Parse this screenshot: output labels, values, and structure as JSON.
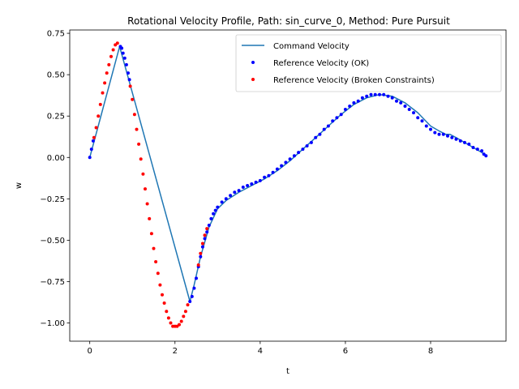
{
  "chart_data": {
    "type": "line",
    "title": "Rotational Velocity Profile, Path: sin_curve_0, Method: Pure Pursuit",
    "xlabel": "t",
    "ylabel": "w",
    "xlim": [
      -0.47,
      9.77
    ],
    "ylim": [
      -1.11,
      0.77
    ],
    "xticks": [
      0,
      2,
      4,
      6,
      8
    ],
    "yticks": [
      -1.0,
      -0.75,
      -0.5,
      -0.25,
      0.0,
      0.25,
      0.5,
      0.75
    ],
    "xtick_labels": [
      "0",
      "2",
      "4",
      "6",
      "8"
    ],
    "ytick_labels": [
      "−1.00",
      "−0.75",
      "−0.50",
      "−0.25",
      "0.00",
      "0.25",
      "0.50",
      "0.75"
    ],
    "grid": false,
    "legend_position": "top-right",
    "series": [
      {
        "name": "Command Velocity",
        "kind": "line",
        "color": "#1f77b4",
        "x": [
          0.0,
          0.7,
          2.35,
          2.45,
          2.6,
          2.8,
          3.0,
          3.2,
          3.5,
          3.8,
          4.1,
          4.4,
          4.7,
          5.0,
          5.3,
          5.6,
          5.9,
          6.2,
          6.5,
          6.8,
          7.1,
          7.4,
          7.7,
          8.0,
          8.2,
          8.35,
          8.45,
          8.6,
          8.8,
          9.0,
          9.2,
          9.3
        ],
        "y": [
          0.0,
          0.67,
          -0.87,
          -0.77,
          -0.6,
          -0.42,
          -0.31,
          -0.26,
          -0.21,
          -0.17,
          -0.13,
          -0.08,
          -0.02,
          0.05,
          0.12,
          0.19,
          0.26,
          0.32,
          0.36,
          0.38,
          0.37,
          0.33,
          0.27,
          0.19,
          0.16,
          0.14,
          0.14,
          0.12,
          0.09,
          0.06,
          0.03,
          0.01
        ]
      },
      {
        "name": "Reference Velocity (OK)",
        "kind": "scatter",
        "color": "#0000ff",
        "x": [
          0.0,
          0.04,
          0.08,
          0.72,
          0.75,
          0.78,
          0.82,
          0.86,
          0.9,
          0.93,
          2.35,
          2.4,
          2.45,
          2.5,
          2.55,
          2.6,
          2.65,
          2.7,
          2.75,
          2.8,
          2.85,
          2.9,
          2.95,
          3.0,
          3.1,
          3.2,
          3.3,
          3.4,
          3.5,
          3.6,
          3.7,
          3.8,
          3.9,
          4.0,
          4.1,
          4.2,
          4.3,
          4.4,
          4.5,
          4.6,
          4.7,
          4.8,
          4.9,
          5.0,
          5.1,
          5.2,
          5.3,
          5.4,
          5.5,
          5.6,
          5.7,
          5.8,
          5.9,
          6.0,
          6.1,
          6.2,
          6.3,
          6.4,
          6.5,
          6.6,
          6.7,
          6.8,
          6.9,
          7.0,
          7.1,
          7.2,
          7.3,
          7.4,
          7.5,
          7.6,
          7.7,
          7.8,
          7.9,
          8.0,
          8.1,
          8.2,
          8.3,
          8.4,
          8.5,
          8.6,
          8.7,
          8.8,
          8.9,
          9.0,
          9.1,
          9.2,
          9.25,
          9.3
        ],
        "y": [
          0.0,
          0.05,
          0.1,
          0.67,
          0.66,
          0.63,
          0.6,
          0.56,
          0.51,
          0.47,
          -0.87,
          -0.84,
          -0.79,
          -0.73,
          -0.66,
          -0.6,
          -0.54,
          -0.49,
          -0.45,
          -0.41,
          -0.37,
          -0.34,
          -0.32,
          -0.3,
          -0.27,
          -0.25,
          -0.23,
          -0.21,
          -0.2,
          -0.18,
          -0.17,
          -0.16,
          -0.15,
          -0.14,
          -0.12,
          -0.11,
          -0.09,
          -0.07,
          -0.05,
          -0.03,
          -0.01,
          0.01,
          0.03,
          0.05,
          0.07,
          0.09,
          0.12,
          0.14,
          0.17,
          0.19,
          0.22,
          0.24,
          0.26,
          0.29,
          0.31,
          0.33,
          0.34,
          0.36,
          0.37,
          0.38,
          0.38,
          0.38,
          0.38,
          0.37,
          0.36,
          0.34,
          0.33,
          0.31,
          0.29,
          0.27,
          0.24,
          0.22,
          0.19,
          0.17,
          0.15,
          0.14,
          0.14,
          0.13,
          0.12,
          0.11,
          0.1,
          0.09,
          0.08,
          0.06,
          0.05,
          0.04,
          0.02,
          0.01
        ]
      },
      {
        "name": "Reference Velocity (Broken Constraints)",
        "kind": "scatter",
        "color": "#ff0000",
        "x": [
          0.1,
          0.15,
          0.2,
          0.25,
          0.3,
          0.35,
          0.4,
          0.45,
          0.5,
          0.55,
          0.6,
          0.65,
          0.95,
          1.0,
          1.05,
          1.1,
          1.15,
          1.2,
          1.25,
          1.3,
          1.35,
          1.4,
          1.45,
          1.5,
          1.55,
          1.6,
          1.65,
          1.7,
          1.75,
          1.8,
          1.85,
          1.9,
          1.95,
          2.0,
          2.05,
          2.1,
          2.15,
          2.2,
          2.25,
          2.3,
          2.55,
          2.6,
          2.65,
          2.7,
          2.75
        ],
        "y": [
          0.12,
          0.18,
          0.25,
          0.32,
          0.39,
          0.45,
          0.51,
          0.56,
          0.61,
          0.65,
          0.68,
          0.69,
          0.43,
          0.35,
          0.26,
          0.17,
          0.08,
          -0.01,
          -0.1,
          -0.19,
          -0.28,
          -0.37,
          -0.46,
          -0.55,
          -0.63,
          -0.7,
          -0.77,
          -0.83,
          -0.88,
          -0.93,
          -0.97,
          -1.0,
          -1.02,
          -1.02,
          -1.02,
          -1.01,
          -0.99,
          -0.96,
          -0.93,
          -0.89,
          -0.65,
          -0.58,
          -0.52,
          -0.47,
          -0.43
        ]
      }
    ]
  }
}
